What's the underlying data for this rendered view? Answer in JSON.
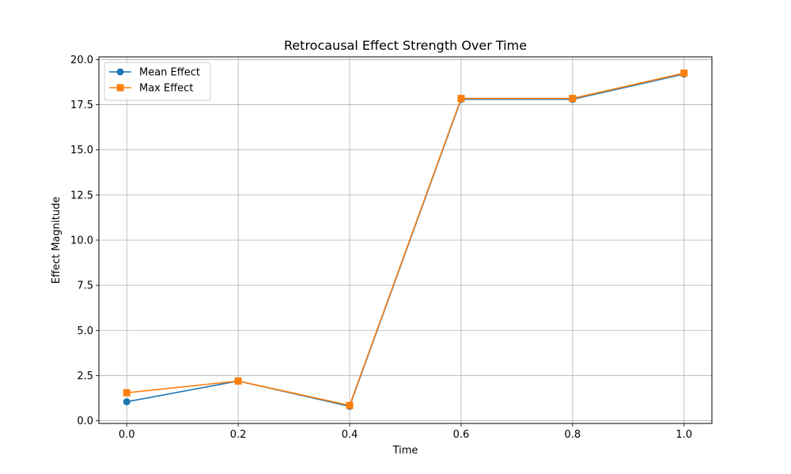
{
  "chart_data": {
    "type": "line",
    "title": "Retrocausal Effect Strength Over Time",
    "xlabel": "Time",
    "ylabel": "Effect Magnitude",
    "x": [
      0.0,
      0.2,
      0.4,
      0.6,
      0.8,
      1.0
    ],
    "xlim": [
      -0.05,
      1.05
    ],
    "ylim": [
      -0.15,
      20.15
    ],
    "x_ticks": [
      0.0,
      0.2,
      0.4,
      0.6,
      0.8,
      1.0
    ],
    "x_tick_labels": [
      "0.0",
      "0.2",
      "0.4",
      "0.6",
      "0.8",
      "1.0"
    ],
    "y_ticks": [
      0.0,
      2.5,
      5.0,
      7.5,
      10.0,
      12.5,
      15.0,
      17.5,
      20.0
    ],
    "y_tick_labels": [
      "0.0",
      "2.5",
      "5.0",
      "7.5",
      "10.0",
      "12.5",
      "15.0",
      "17.5",
      "20.0"
    ],
    "grid": true,
    "legend_position": "top-left",
    "series": [
      {
        "name": "Mean Effect",
        "color": "#1f77b4",
        "marker": "circle",
        "values": [
          1.05,
          2.2,
          0.8,
          17.8,
          17.8,
          19.2
        ]
      },
      {
        "name": "Max Effect",
        "color": "#ff7f0e",
        "marker": "square",
        "values": [
          1.55,
          2.2,
          0.85,
          17.85,
          17.85,
          19.25
        ]
      }
    ]
  }
}
